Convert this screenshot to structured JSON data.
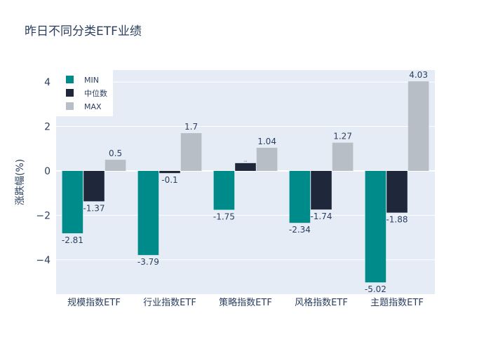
{
  "chart_data": {
    "type": "bar",
    "title": "昨日不同分类ETF业绩",
    "xlabel": "",
    "ylabel": "涨跌幅(%)",
    "ylim": [
      -5.55,
      4.54
    ],
    "yticks": [
      -4,
      -2,
      0,
      2,
      4
    ],
    "ytick_labels": [
      "−4",
      "−2",
      "0",
      "2",
      "4"
    ],
    "grid": true,
    "legend_position": "top-left",
    "categories": [
      "规模指数ETF",
      "行业指数ETF",
      "策略指数ETF",
      "风格指数ETF",
      "主题指数ETF"
    ],
    "series": [
      {
        "name": "MIN",
        "color": "#008b8b",
        "values": [
          -2.81,
          -3.79,
          -1.75,
          -2.34,
          -5.02
        ],
        "labels": [
          "-2.81",
          "-3.79",
          "-1.75",
          "-2.34",
          "-5.02"
        ]
      },
      {
        "name": "中位数",
        "color": "#1f283b",
        "values": [
          -1.37,
          -0.1,
          0.35,
          -1.74,
          -1.88
        ],
        "labels": [
          "-1.37",
          "-0.1",
          "0.35",
          "-1.74",
          "-1.88"
        ]
      },
      {
        "name": "MAX",
        "color": "#b8bec6",
        "values": [
          0.5,
          1.7,
          1.04,
          1.27,
          4.03
        ],
        "labels": [
          "0.5",
          "1.7",
          "1.04",
          "1.27",
          "4.03"
        ]
      }
    ]
  }
}
